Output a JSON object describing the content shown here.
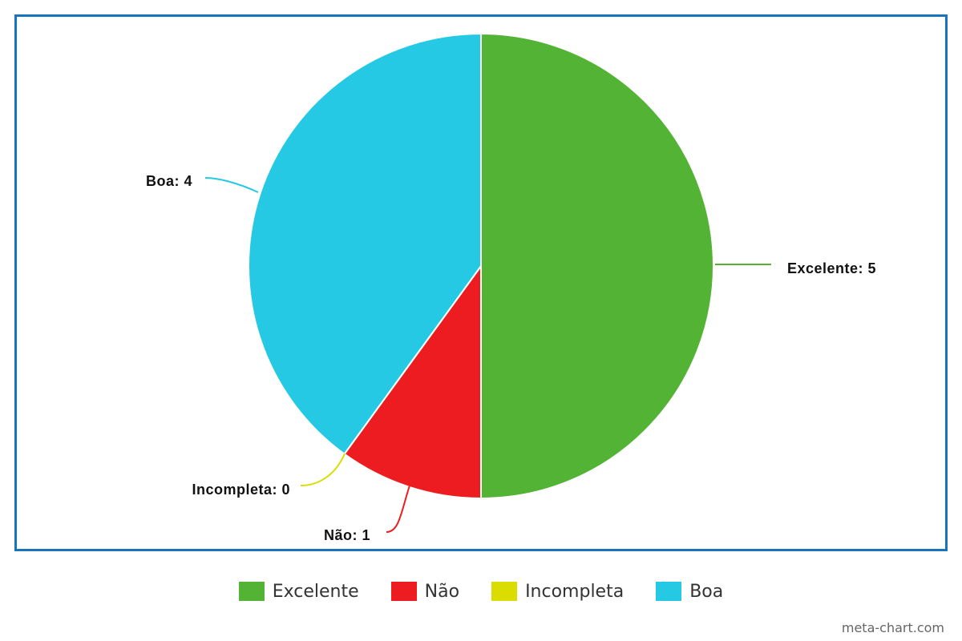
{
  "chart_data": {
    "type": "pie",
    "title": "",
    "categories": [
      "Excelente",
      "Não",
      "Incompleta",
      "Boa"
    ],
    "values": [
      5,
      1,
      0,
      4
    ],
    "colors": [
      "#52b334",
      "#ed1c20",
      "#dbdc00",
      "#25c9e4"
    ],
    "data_labels": [
      "Excelente: 5",
      "Não: 1",
      "Incompleta: 0",
      "Boa: 4"
    ],
    "legend_position": "bottom-center"
  },
  "legend": {
    "items": [
      {
        "label": "Excelente",
        "color": "#52b334"
      },
      {
        "label": "Não",
        "color": "#ed1c20"
      },
      {
        "label": "Incompleta",
        "color": "#dbdc00"
      },
      {
        "label": "Boa",
        "color": "#25c9e4"
      }
    ]
  },
  "credit": "meta-chart.com",
  "frame_color": "#1a74bd"
}
